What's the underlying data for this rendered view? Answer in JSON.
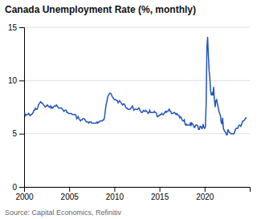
{
  "chart_data": {
    "type": "line",
    "title": "Canada Unemployment Rate (%, monthly)",
    "source": "Source: Capital Economics, Refinitiv",
    "color": "#2255bb",
    "grid": "y",
    "xlim": [
      2000.0,
      2025.0
    ],
    "xticks": [
      2000,
      2005,
      2010,
      2015,
      2020
    ],
    "ylim": [
      0,
      15
    ],
    "yticks": [
      0,
      5,
      10,
      15
    ],
    "x": [
      2000.0,
      2000.08,
      2000.17,
      2000.25,
      2000.33,
      2000.42,
      2000.5,
      2000.58,
      2000.67,
      2000.75,
      2000.83,
      2000.92,
      2001.0,
      2001.08,
      2001.17,
      2001.25,
      2001.33,
      2001.42,
      2001.5,
      2001.58,
      2001.67,
      2001.75,
      2001.83,
      2001.92,
      2002.0,
      2002.08,
      2002.17,
      2002.25,
      2002.33,
      2002.42,
      2002.5,
      2002.58,
      2002.67,
      2002.75,
      2002.83,
      2002.92,
      2003.0,
      2003.08,
      2003.17,
      2003.25,
      2003.33,
      2003.42,
      2003.5,
      2003.58,
      2003.67,
      2003.75,
      2003.83,
      2003.92,
      2004.0,
      2004.08,
      2004.17,
      2004.25,
      2004.33,
      2004.42,
      2004.5,
      2004.58,
      2004.67,
      2004.75,
      2004.83,
      2004.92,
      2005.0,
      2005.08,
      2005.17,
      2005.25,
      2005.33,
      2005.42,
      2005.5,
      2005.58,
      2005.67,
      2005.75,
      2005.83,
      2005.92,
      2006.0,
      2006.08,
      2006.17,
      2006.25,
      2006.33,
      2006.42,
      2006.5,
      2006.58,
      2006.67,
      2006.75,
      2006.83,
      2006.92,
      2007.0,
      2007.08,
      2007.17,
      2007.25,
      2007.33,
      2007.42,
      2007.5,
      2007.58,
      2007.67,
      2007.75,
      2007.83,
      2007.92,
      2008.0,
      2008.08,
      2008.17,
      2008.25,
      2008.33,
      2008.42,
      2008.5,
      2008.58,
      2008.67,
      2008.75,
      2008.83,
      2008.92,
      2009.0,
      2009.08,
      2009.17,
      2009.25,
      2009.33,
      2009.42,
      2009.5,
      2009.58,
      2009.67,
      2009.75,
      2009.83,
      2009.92,
      2010.0,
      2010.08,
      2010.17,
      2010.25,
      2010.33,
      2010.42,
      2010.5,
      2010.58,
      2010.67,
      2010.75,
      2010.83,
      2010.92,
      2011.0,
      2011.08,
      2011.17,
      2011.25,
      2011.33,
      2011.42,
      2011.5,
      2011.58,
      2011.67,
      2011.75,
      2011.83,
      2011.92,
      2012.0,
      2012.08,
      2012.17,
      2012.25,
      2012.33,
      2012.42,
      2012.5,
      2012.58,
      2012.67,
      2012.75,
      2012.83,
      2012.92,
      2013.0,
      2013.08,
      2013.17,
      2013.25,
      2013.33,
      2013.42,
      2013.5,
      2013.58,
      2013.67,
      2013.75,
      2013.83,
      2013.92,
      2014.0,
      2014.08,
      2014.17,
      2014.25,
      2014.33,
      2014.42,
      2014.5,
      2014.58,
      2014.67,
      2014.75,
      2014.83,
      2014.92,
      2015.0,
      2015.08,
      2015.17,
      2015.25,
      2015.33,
      2015.42,
      2015.5,
      2015.58,
      2015.67,
      2015.75,
      2015.83,
      2015.92,
      2016.0,
      2016.08,
      2016.17,
      2016.25,
      2016.33,
      2016.42,
      2016.5,
      2016.58,
      2016.67,
      2016.75,
      2016.83,
      2016.92,
      2017.0,
      2017.08,
      2017.17,
      2017.25,
      2017.33,
      2017.42,
      2017.5,
      2017.58,
      2017.67,
      2017.75,
      2017.83,
      2017.92,
      2018.0,
      2018.08,
      2018.17,
      2018.25,
      2018.33,
      2018.42,
      2018.5,
      2018.58,
      2018.67,
      2018.75,
      2018.83,
      2018.92,
      2019.0,
      2019.08,
      2019.17,
      2019.25,
      2019.33,
      2019.42,
      2019.5,
      2019.58,
      2019.67,
      2019.75,
      2019.83,
      2019.92,
      2020.0,
      2020.08,
      2020.17,
      2020.25,
      2020.33,
      2020.42,
      2020.5,
      2020.58,
      2020.67,
      2020.75,
      2020.83,
      2020.92,
      2021.0,
      2021.08,
      2021.17,
      2021.25,
      2021.33,
      2021.42,
      2021.5,
      2021.58,
      2021.67,
      2021.75,
      2021.83,
      2021.92,
      2022.0,
      2022.08,
      2022.17,
      2022.25,
      2022.33,
      2022.42,
      2022.5,
      2022.58,
      2022.67,
      2022.75,
      2022.83,
      2022.92,
      2023.0,
      2023.08,
      2023.17,
      2023.25,
      2023.33,
      2023.42,
      2023.5,
      2023.58,
      2023.67,
      2023.75,
      2023.83,
      2023.92,
      2024.0,
      2024.08,
      2024.17,
      2024.25,
      2024.33,
      2024.42,
      2024.5,
      2024.58,
      2024.67
    ],
    "values": [
      6.8,
      6.9,
      6.7,
      6.8,
      6.8,
      6.8,
      6.9,
      6.8,
      6.7,
      6.8,
      6.8,
      6.9,
      7.0,
      7.2,
      7.2,
      7.4,
      7.3,
      7.3,
      7.4,
      7.7,
      7.8,
      7.9,
      8.0,
      7.9,
      7.9,
      7.8,
      7.7,
      7.6,
      7.5,
      7.6,
      7.6,
      7.7,
      7.6,
      7.5,
      7.5,
      7.6,
      7.4,
      7.5,
      7.4,
      7.5,
      7.6,
      7.6,
      7.6,
      7.7,
      7.6,
      7.5,
      7.4,
      7.4,
      7.4,
      7.4,
      7.4,
      7.3,
      7.2,
      7.1,
      7.2,
      7.2,
      7.2,
      7.0,
      7.0,
      6.9,
      6.9,
      6.9,
      6.9,
      6.9,
      6.8,
      6.8,
      6.8,
      6.8,
      6.8,
      6.7,
      6.4,
      6.5,
      6.6,
      6.4,
      6.3,
      6.2,
      6.3,
      6.3,
      6.4,
      6.4,
      6.4,
      6.3,
      6.2,
      6.1,
      6.1,
      6.1,
      6.0,
      6.1,
      6.1,
      6.1,
      6.0,
      6.0,
      6.0,
      6.0,
      6.0,
      6.0,
      6.0,
      6.1,
      6.0,
      6.1,
      6.1,
      6.2,
      6.2,
      6.2,
      6.2,
      6.3,
      6.3,
      6.6,
      7.2,
      7.7,
      8.0,
      8.4,
      8.6,
      8.7,
      8.8,
      8.8,
      8.7,
      8.5,
      8.4,
      8.3,
      8.2,
      8.2,
      8.2,
      8.1,
      8.1,
      7.9,
      8.0,
      8.1,
      8.0,
      7.9,
      7.8,
      7.7,
      7.8,
      7.8,
      7.7,
      7.5,
      7.4,
      7.4,
      7.3,
      7.3,
      7.3,
      7.3,
      7.4,
      7.5,
      7.6,
      7.4,
      7.2,
      7.3,
      7.3,
      7.3,
      7.3,
      7.3,
      7.4,
      7.4,
      7.2,
      7.1,
      7.0,
      7.0,
      7.1,
      7.2,
      7.1,
      7.1,
      7.2,
      7.1,
      7.0,
      6.9,
      7.0,
      7.2,
      7.0,
      7.0,
      7.0,
      7.0,
      7.0,
      7.1,
      7.0,
      7.0,
      6.9,
      6.6,
      6.6,
      6.7,
      6.7,
      6.8,
      6.8,
      6.9,
      6.8,
      6.8,
      6.9,
      7.0,
      7.1,
      7.0,
      7.1,
      7.1,
      7.2,
      7.3,
      7.1,
      7.1,
      6.9,
      6.9,
      6.9,
      7.0,
      7.0,
      6.9,
      6.8,
      6.9,
      6.8,
      6.7,
      6.7,
      6.5,
      6.6,
      6.5,
      6.3,
      6.2,
      6.2,
      6.3,
      5.9,
      5.8,
      5.9,
      5.8,
      5.8,
      5.8,
      5.8,
      6.0,
      5.8,
      6.0,
      5.9,
      5.8,
      5.6,
      5.6,
      5.8,
      5.8,
      5.8,
      5.7,
      5.4,
      5.4,
      5.7,
      5.7,
      5.5,
      5.5,
      5.9,
      5.6,
      5.5,
      5.6,
      7.8,
      13.0,
      14.1,
      12.3,
      10.9,
      10.2,
      9.0,
      8.6,
      8.8,
      8.6,
      9.4,
      8.2,
      7.5,
      8.1,
      8.2,
      7.8,
      7.5,
      7.1,
      6.9,
      6.7,
      6.1,
      5.9,
      6.5,
      5.5,
      5.3,
      5.2,
      5.1,
      4.9,
      4.9,
      5.4,
      5.2,
      5.1,
      5.1,
      5.0,
      5.0,
      5.0,
      5.0,
      5.0,
      5.2,
      5.4,
      5.5,
      5.5,
      5.5,
      5.7,
      5.8,
      5.8,
      5.7,
      5.8,
      6.1,
      6.2,
      6.2,
      6.3,
      6.4,
      6.5,
      6.5
    ]
  }
}
